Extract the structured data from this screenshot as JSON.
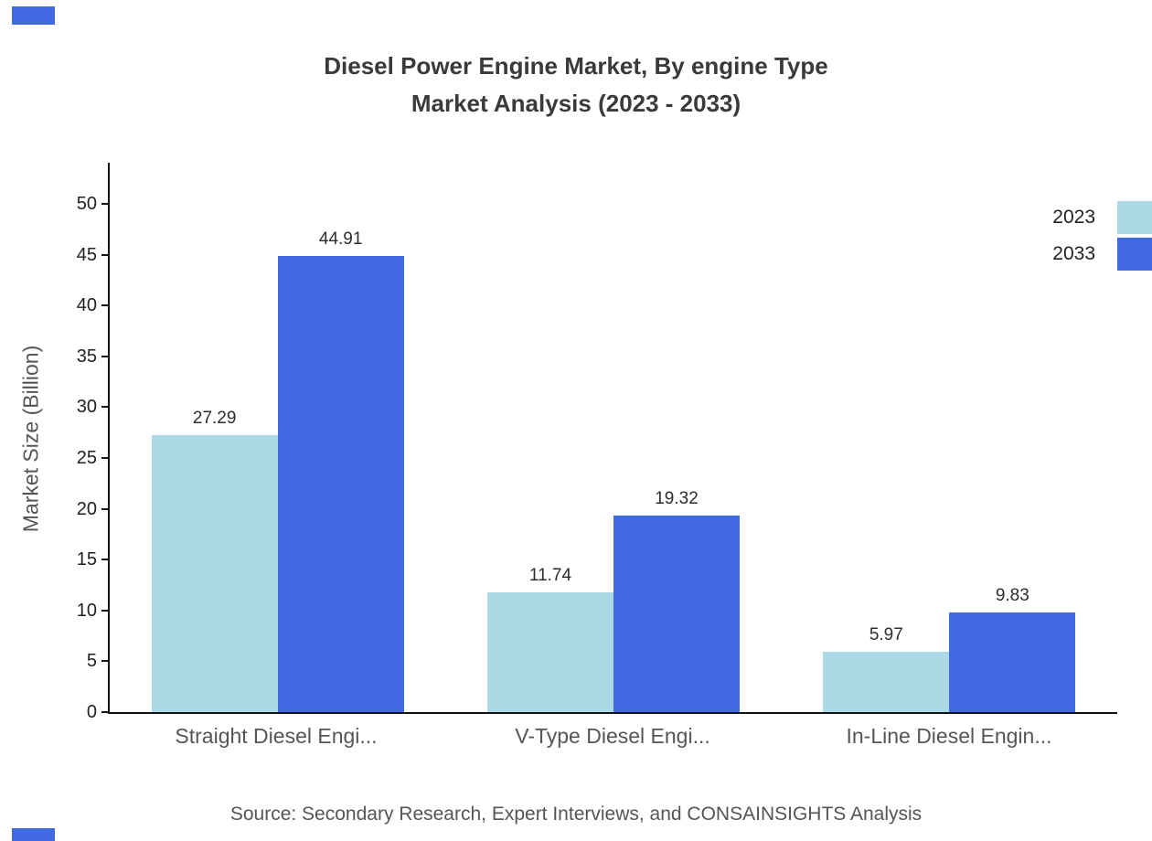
{
  "title": {
    "line1": "Diesel Power Engine Market, By engine Type",
    "line2": "Market Analysis (2023 - 2033)"
  },
  "source": "Source: Secondary Research, Expert Interviews, and CONSAINSIGHTS Analysis",
  "colors": {
    "series_2023": "#add8e6",
    "series_2033": "#4169e1",
    "axis": "#111111",
    "title_text": "#3a3a3a",
    "muted_text": "#555555"
  },
  "chart_data": {
    "type": "bar",
    "title": "Diesel Power Engine Market, By engine Type Market Analysis (2023 - 2033)",
    "categories": [
      "Straight Diesel Engi...",
      "V-Type Diesel Engi...",
      "In-Line Diesel Engin..."
    ],
    "series": [
      {
        "name": "2023",
        "color": "#add8e6",
        "values": [
          27.29,
          11.74,
          5.97
        ]
      },
      {
        "name": "2033",
        "color": "#4169e1",
        "values": [
          44.91,
          19.32,
          9.83
        ]
      }
    ],
    "xlabel": "",
    "ylabel": "Market Size (Billion)",
    "ylim": [
      0,
      50
    ],
    "ytick_step": 5,
    "grid": false,
    "legend_position": "top-right"
  }
}
